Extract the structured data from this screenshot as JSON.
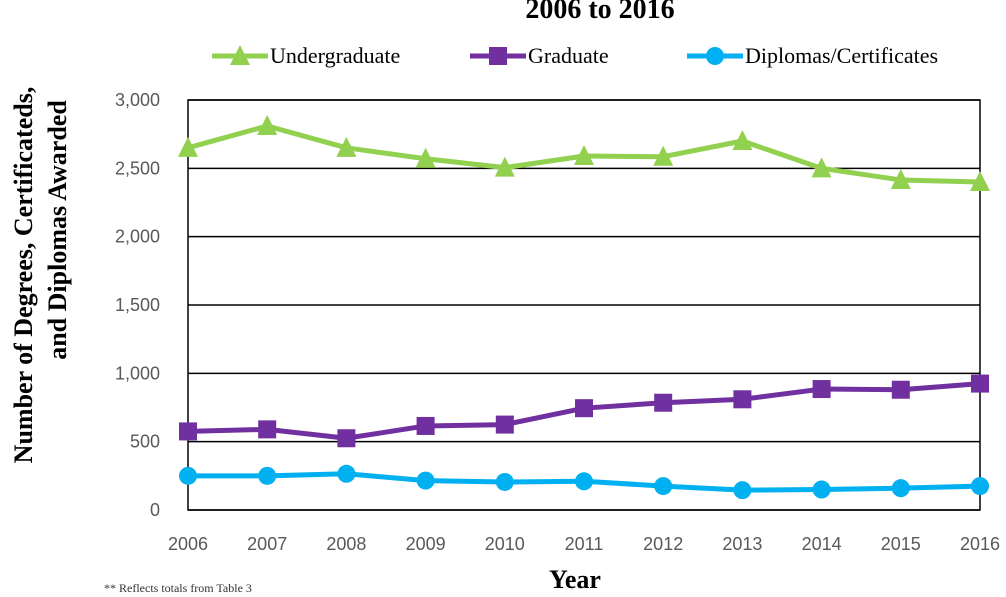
{
  "chart_data": {
    "type": "line",
    "title": "2006 to 2016",
    "xlabel": "Year",
    "ylabel": [
      "Number of  Degrees, Certificateds,",
      "and Diplomas Awarded"
    ],
    "x": [
      "2006",
      "2007",
      "2008",
      "2009",
      "2010",
      "2011",
      "2012",
      "2013",
      "2014",
      "2015",
      "2016"
    ],
    "ylim": [
      0,
      3000
    ],
    "yticks": [
      "0",
      "500",
      "1,000",
      "1,500",
      "2,000",
      "2,500",
      "3,000"
    ],
    "grid": true,
    "legend_position": "top",
    "series": [
      {
        "name": "Undergraduate",
        "color": "#92D050",
        "marker": "triangle",
        "values": [
          2650,
          2810,
          2650,
          2570,
          2505,
          2590,
          2585,
          2700,
          2500,
          2415,
          2400
        ]
      },
      {
        "name": "Graduate",
        "color": "#7030A0",
        "marker": "square",
        "values": [
          575,
          590,
          525,
          615,
          625,
          745,
          785,
          810,
          885,
          880,
          925
        ]
      },
      {
        "name": "Diplomas/Certificates",
        "color": "#00B0F0",
        "marker": "circle",
        "values": [
          250,
          250,
          265,
          215,
          205,
          210,
          175,
          145,
          150,
          160,
          175
        ]
      }
    ],
    "footnote": "** Reflects totals from Table 3"
  }
}
